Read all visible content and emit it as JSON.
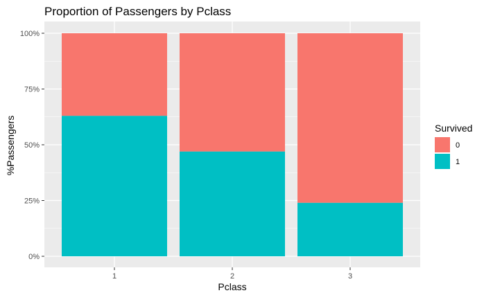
{
  "chart_data": {
    "type": "bar",
    "stacked": true,
    "title": "Proportion of Passengers by Pclass",
    "xlabel": "Pclass",
    "ylabel": "%Passengers",
    "categories": [
      "1",
      "2",
      "3"
    ],
    "ylim": [
      0,
      1
    ],
    "y_ticks": [
      {
        "value": 0,
        "label": "0%"
      },
      {
        "value": 0.25,
        "label": "25%"
      },
      {
        "value": 0.5,
        "label": "50%"
      },
      {
        "value": 0.75,
        "label": "75%"
      },
      {
        "value": 1,
        "label": "100%"
      }
    ],
    "grid": true,
    "legend": {
      "title": "Survived",
      "placement": "right"
    },
    "series": [
      {
        "name": "0",
        "color": "#F8766D",
        "values": [
          0.37,
          0.53,
          0.76
        ]
      },
      {
        "name": "1",
        "color": "#00BFC4",
        "values": [
          0.63,
          0.47,
          0.24
        ]
      }
    ],
    "colors": {
      "panel_background": "#EBEBEB",
      "grid_line": "#FFFFFF",
      "axis_text": "#4D4D4D"
    }
  }
}
